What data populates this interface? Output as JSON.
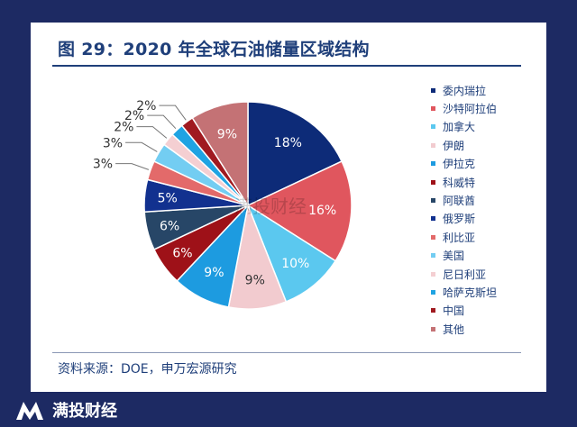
{
  "title": "图 29：2020 年全球石油储量区域结构",
  "source": "资料来源：DOE，申万宏源研究",
  "watermark": "满投财经",
  "footer": {
    "brand": "满投财经",
    "logo_icon": "brand-m-logo-icon"
  },
  "chart_data": {
    "type": "pie",
    "title": "图 29：2020 年全球石油储量区域结构",
    "slices": [
      {
        "label": "委内瑞拉",
        "value": 18,
        "text": "18%",
        "color": "#0d2b78"
      },
      {
        "label": "沙特阿拉伯",
        "value": 16,
        "text": "16%",
        "color": "#e0565e"
      },
      {
        "label": "加拿大",
        "value": 10,
        "text": "10%",
        "color": "#5bc8ef"
      },
      {
        "label": "伊朗",
        "value": 9,
        "text": "9%",
        "color": "#f2cbcf"
      },
      {
        "label": "伊拉克",
        "value": 9,
        "text": "9%",
        "color": "#1d9be0"
      },
      {
        "label": "科威特",
        "value": 6,
        "text": "6%",
        "color": "#9e1118"
      },
      {
        "label": "阿联酋",
        "value": 6,
        "text": "6%",
        "color": "#274667"
      },
      {
        "label": "俄罗斯",
        "value": 5,
        "text": "5%",
        "color": "#12318f"
      },
      {
        "label": "利比亚",
        "value": 3,
        "text": "3%",
        "color": "#e36a6a"
      },
      {
        "label": "美国",
        "value": 3,
        "text": "3%",
        "color": "#73cdf2"
      },
      {
        "label": "尼日利亚",
        "value": 2,
        "text": "2%",
        "color": "#f4cfd2"
      },
      {
        "label": "哈萨克斯坦",
        "value": 2,
        "text": "2%",
        "color": "#1fa3e2"
      },
      {
        "label": "中国",
        "value": 2,
        "text": "2%",
        "color": "#a01a20"
      },
      {
        "label": "其他",
        "value": 9,
        "text": "9%",
        "color": "#c47275"
      }
    ],
    "legend_position": "right"
  }
}
